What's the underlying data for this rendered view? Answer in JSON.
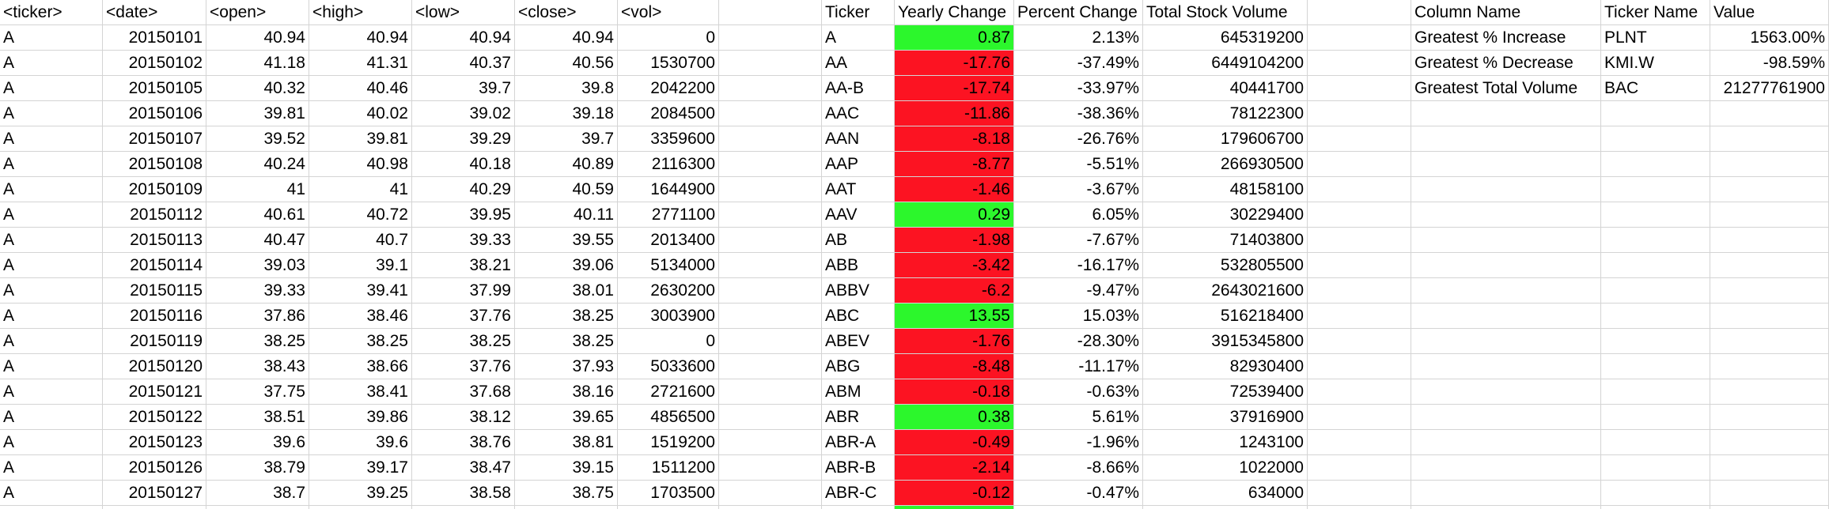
{
  "colors": {
    "positive": "#2cf72c",
    "negative": "#fc1322",
    "gridline": "#d4d4d4"
  },
  "raw_data": {
    "headers": [
      "<ticker>",
      "<date>",
      "<open>",
      "<high>",
      "<low>",
      "<close>",
      "<vol>"
    ],
    "rows": [
      [
        "A",
        "20150101",
        "40.94",
        "40.94",
        "40.94",
        "40.94",
        "0"
      ],
      [
        "A",
        "20150102",
        "41.18",
        "41.31",
        "40.37",
        "40.56",
        "1530700"
      ],
      [
        "A",
        "20150105",
        "40.32",
        "40.46",
        "39.7",
        "39.8",
        "2042200"
      ],
      [
        "A",
        "20150106",
        "39.81",
        "40.02",
        "39.02",
        "39.18",
        "2084500"
      ],
      [
        "A",
        "20150107",
        "39.52",
        "39.81",
        "39.29",
        "39.7",
        "3359600"
      ],
      [
        "A",
        "20150108",
        "40.24",
        "40.98",
        "40.18",
        "40.89",
        "2116300"
      ],
      [
        "A",
        "20150109",
        "41",
        "41",
        "40.29",
        "40.59",
        "1644900"
      ],
      [
        "A",
        "20150112",
        "40.61",
        "40.72",
        "39.95",
        "40.11",
        "2771100"
      ],
      [
        "A",
        "20150113",
        "40.47",
        "40.7",
        "39.33",
        "39.55",
        "2013400"
      ],
      [
        "A",
        "20150114",
        "39.03",
        "39.1",
        "38.21",
        "39.06",
        "5134000"
      ],
      [
        "A",
        "20150115",
        "39.33",
        "39.41",
        "37.99",
        "38.01",
        "2630200"
      ],
      [
        "A",
        "20150116",
        "37.86",
        "38.46",
        "37.76",
        "38.25",
        "3003900"
      ],
      [
        "A",
        "20150119",
        "38.25",
        "38.25",
        "38.25",
        "38.25",
        "0"
      ],
      [
        "A",
        "20150120",
        "38.43",
        "38.66",
        "37.76",
        "37.93",
        "5033600"
      ],
      [
        "A",
        "20150121",
        "37.75",
        "38.41",
        "37.68",
        "38.16",
        "2721600"
      ],
      [
        "A",
        "20150122",
        "38.51",
        "39.86",
        "38.12",
        "39.65",
        "4856500"
      ],
      [
        "A",
        "20150123",
        "39.6",
        "39.6",
        "38.76",
        "38.81",
        "1519200"
      ],
      [
        "A",
        "20150126",
        "38.79",
        "39.17",
        "38.47",
        "39.15",
        "1511200"
      ],
      [
        "A",
        "20150127",
        "38.7",
        "39.25",
        "38.58",
        "38.75",
        "1703500"
      ]
    ]
  },
  "summary": {
    "headers": [
      "Ticker",
      "Yearly Change",
      "Percent Change",
      "Total Stock Volume"
    ],
    "rows": [
      {
        "ticker": "A",
        "change": "0.87",
        "percent": "2.13%",
        "volume": "645319200",
        "color": "#2cf72c"
      },
      {
        "ticker": "AA",
        "change": "-17.76",
        "percent": "-37.49%",
        "volume": "6449104200",
        "color": "#fc1322"
      },
      {
        "ticker": "AA-B",
        "change": "-17.74",
        "percent": "-33.97%",
        "volume": "40441700",
        "color": "#fc1322"
      },
      {
        "ticker": "AAC",
        "change": "-11.86",
        "percent": "-38.36%",
        "volume": "78122300",
        "color": "#fc1322"
      },
      {
        "ticker": "AAN",
        "change": "-8.18",
        "percent": "-26.76%",
        "volume": "179606700",
        "color": "#fc1322"
      },
      {
        "ticker": "AAP",
        "change": "-8.77",
        "percent": "-5.51%",
        "volume": "266930500",
        "color": "#fc1322"
      },
      {
        "ticker": "AAT",
        "change": "-1.46",
        "percent": "-3.67%",
        "volume": "48158100",
        "color": "#fc1322"
      },
      {
        "ticker": "AAV",
        "change": "0.29",
        "percent": "6.05%",
        "volume": "30229400",
        "color": "#2cf72c"
      },
      {
        "ticker": "AB",
        "change": "-1.98",
        "percent": "-7.67%",
        "volume": "71403800",
        "color": "#fc1322"
      },
      {
        "ticker": "ABB",
        "change": "-3.42",
        "percent": "-16.17%",
        "volume": "532805500",
        "color": "#fc1322"
      },
      {
        "ticker": "ABBV",
        "change": "-6.2",
        "percent": "-9.47%",
        "volume": "2643021600",
        "color": "#fc1322"
      },
      {
        "ticker": "ABC",
        "change": "13.55",
        "percent": "15.03%",
        "volume": "516218400",
        "color": "#2cf72c"
      },
      {
        "ticker": "ABEV",
        "change": "-1.76",
        "percent": "-28.30%",
        "volume": "3915345800",
        "color": "#fc1322"
      },
      {
        "ticker": "ABG",
        "change": "-8.48",
        "percent": "-11.17%",
        "volume": "82930400",
        "color": "#fc1322"
      },
      {
        "ticker": "ABM",
        "change": "-0.18",
        "percent": "-0.63%",
        "volume": "72539400",
        "color": "#fc1322"
      },
      {
        "ticker": "ABR",
        "change": "0.38",
        "percent": "5.61%",
        "volume": "37916900",
        "color": "#2cf72c"
      },
      {
        "ticker": "ABR-A",
        "change": "-0.49",
        "percent": "-1.96%",
        "volume": "1243100",
        "color": "#fc1322"
      },
      {
        "ticker": "ABR-B",
        "change": "-2.14",
        "percent": "-8.66%",
        "volume": "1022000",
        "color": "#fc1322"
      },
      {
        "ticker": "ABR-C",
        "change": "-0.12",
        "percent": "-0.47%",
        "volume": "634000",
        "color": "#fc1322"
      },
      {
        "ticker": "",
        "change": "",
        "percent": "",
        "volume": "",
        "color": "#2cf72c"
      }
    ]
  },
  "greatest": {
    "headers": [
      "Column Name",
      "Ticker Name",
      "Value"
    ],
    "rows": [
      [
        "Greatest % Increase",
        "PLNT",
        "1563.00%"
      ],
      [
        "Greatest % Decrease",
        "KMI.W",
        "-98.59%"
      ],
      [
        "Greatest Total Volume",
        "BAC",
        "21277761900"
      ]
    ]
  }
}
